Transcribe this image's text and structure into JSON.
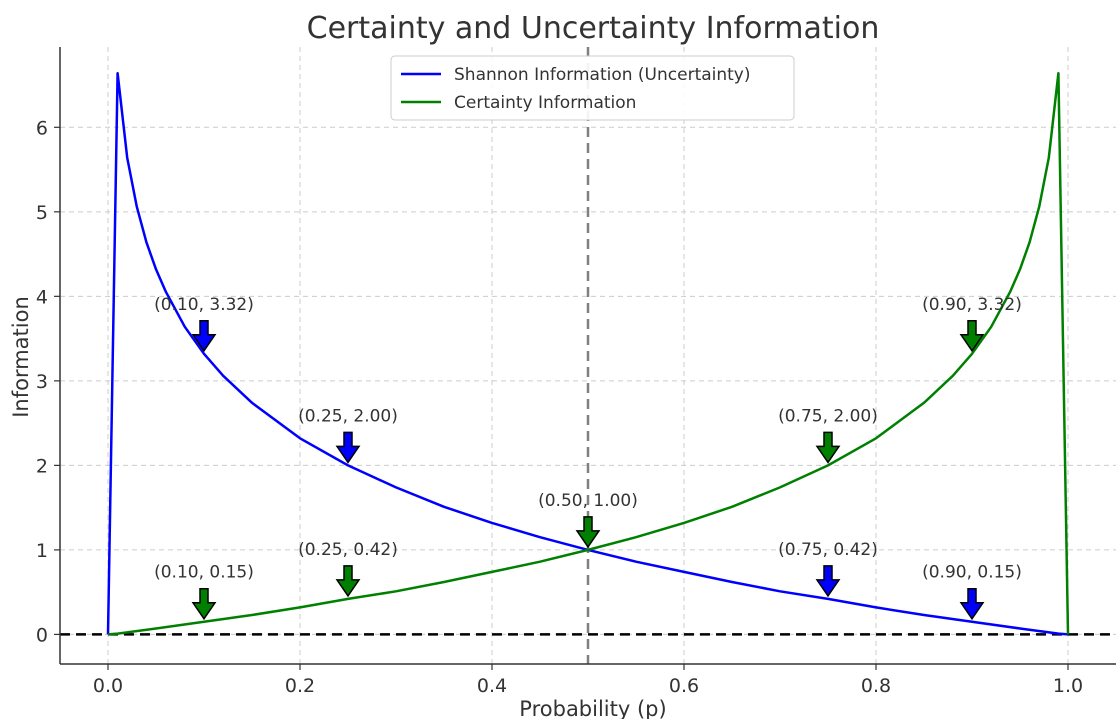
{
  "chart_data": {
    "type": "line",
    "title": "Certainty and Uncertainty Information",
    "xlabel": "Probability (p)",
    "ylabel": "Information",
    "xlim": [
      -0.05,
      1.05
    ],
    "ylim": [
      -0.35,
      6.95
    ],
    "xticks": [
      "0.0",
      "0.2",
      "0.4",
      "0.6",
      "0.8",
      "1.0"
    ],
    "yticks": [
      "0",
      "1",
      "2",
      "3",
      "4",
      "5",
      "6"
    ],
    "grid": true,
    "legend_position": "top-center",
    "series": [
      {
        "name": "Shannon Information (Uncertainty)",
        "color": "#0000ff",
        "x": [
          0,
          0.01,
          0.02,
          0.03,
          0.04,
          0.05,
          0.06,
          0.08,
          0.1,
          0.12,
          0.15,
          0.2,
          0.25,
          0.3,
          0.35,
          0.4,
          0.45,
          0.5,
          0.55,
          0.6,
          0.65,
          0.7,
          0.75,
          0.8,
          0.85,
          0.9,
          0.95,
          0.99,
          1.0
        ],
        "y": [
          0,
          6.64,
          5.64,
          5.06,
          4.64,
          4.32,
          4.06,
          3.64,
          3.32,
          3.06,
          2.74,
          2.32,
          2.0,
          1.74,
          1.51,
          1.32,
          1.15,
          1.0,
          0.86,
          0.74,
          0.62,
          0.51,
          0.42,
          0.32,
          0.23,
          0.15,
          0.07,
          0.01,
          0
        ]
      },
      {
        "name": "Certainty Information",
        "color": "#008000",
        "x": [
          0,
          0.01,
          0.05,
          0.1,
          0.15,
          0.2,
          0.25,
          0.3,
          0.35,
          0.4,
          0.45,
          0.5,
          0.55,
          0.6,
          0.65,
          0.7,
          0.75,
          0.8,
          0.85,
          0.88,
          0.9,
          0.92,
          0.94,
          0.95,
          0.96,
          0.97,
          0.98,
          0.99,
          1.0
        ],
        "y": [
          0,
          0.01,
          0.07,
          0.15,
          0.23,
          0.32,
          0.42,
          0.51,
          0.62,
          0.74,
          0.86,
          1.0,
          1.15,
          1.32,
          1.51,
          1.74,
          2.0,
          2.32,
          2.74,
          3.06,
          3.32,
          3.64,
          4.06,
          4.32,
          4.64,
          5.06,
          5.64,
          6.64,
          0
        ]
      }
    ],
    "reference_lines": [
      {
        "orientation": "vertical",
        "value": 0.5,
        "color": "#808080",
        "style": "dashed"
      },
      {
        "orientation": "horizontal",
        "value": 0,
        "color": "#000000",
        "style": "dashed"
      }
    ],
    "annotations": [
      {
        "text": "(0.10, 3.32)",
        "x": 0.1,
        "y": 3.32,
        "arrow_color": "#0000ff"
      },
      {
        "text": "(0.25, 2.00)",
        "x": 0.25,
        "y": 2.0,
        "arrow_color": "#0000ff"
      },
      {
        "text": "(0.75, 0.42)",
        "x": 0.75,
        "y": 0.42,
        "arrow_color": "#0000ff"
      },
      {
        "text": "(0.90, 0.15)",
        "x": 0.9,
        "y": 0.15,
        "arrow_color": "#0000ff"
      },
      {
        "text": "(0.10, 0.15)",
        "x": 0.1,
        "y": 0.15,
        "arrow_color": "#008000"
      },
      {
        "text": "(0.25, 0.42)",
        "x": 0.25,
        "y": 0.42,
        "arrow_color": "#008000"
      },
      {
        "text": "(0.50, 1.00)",
        "x": 0.5,
        "y": 1.0,
        "arrow_color": "#008000"
      },
      {
        "text": "(0.75, 2.00)",
        "x": 0.75,
        "y": 2.0,
        "arrow_color": "#008000"
      },
      {
        "text": "(0.90, 3.32)",
        "x": 0.9,
        "y": 3.32,
        "arrow_color": "#008000"
      }
    ]
  }
}
